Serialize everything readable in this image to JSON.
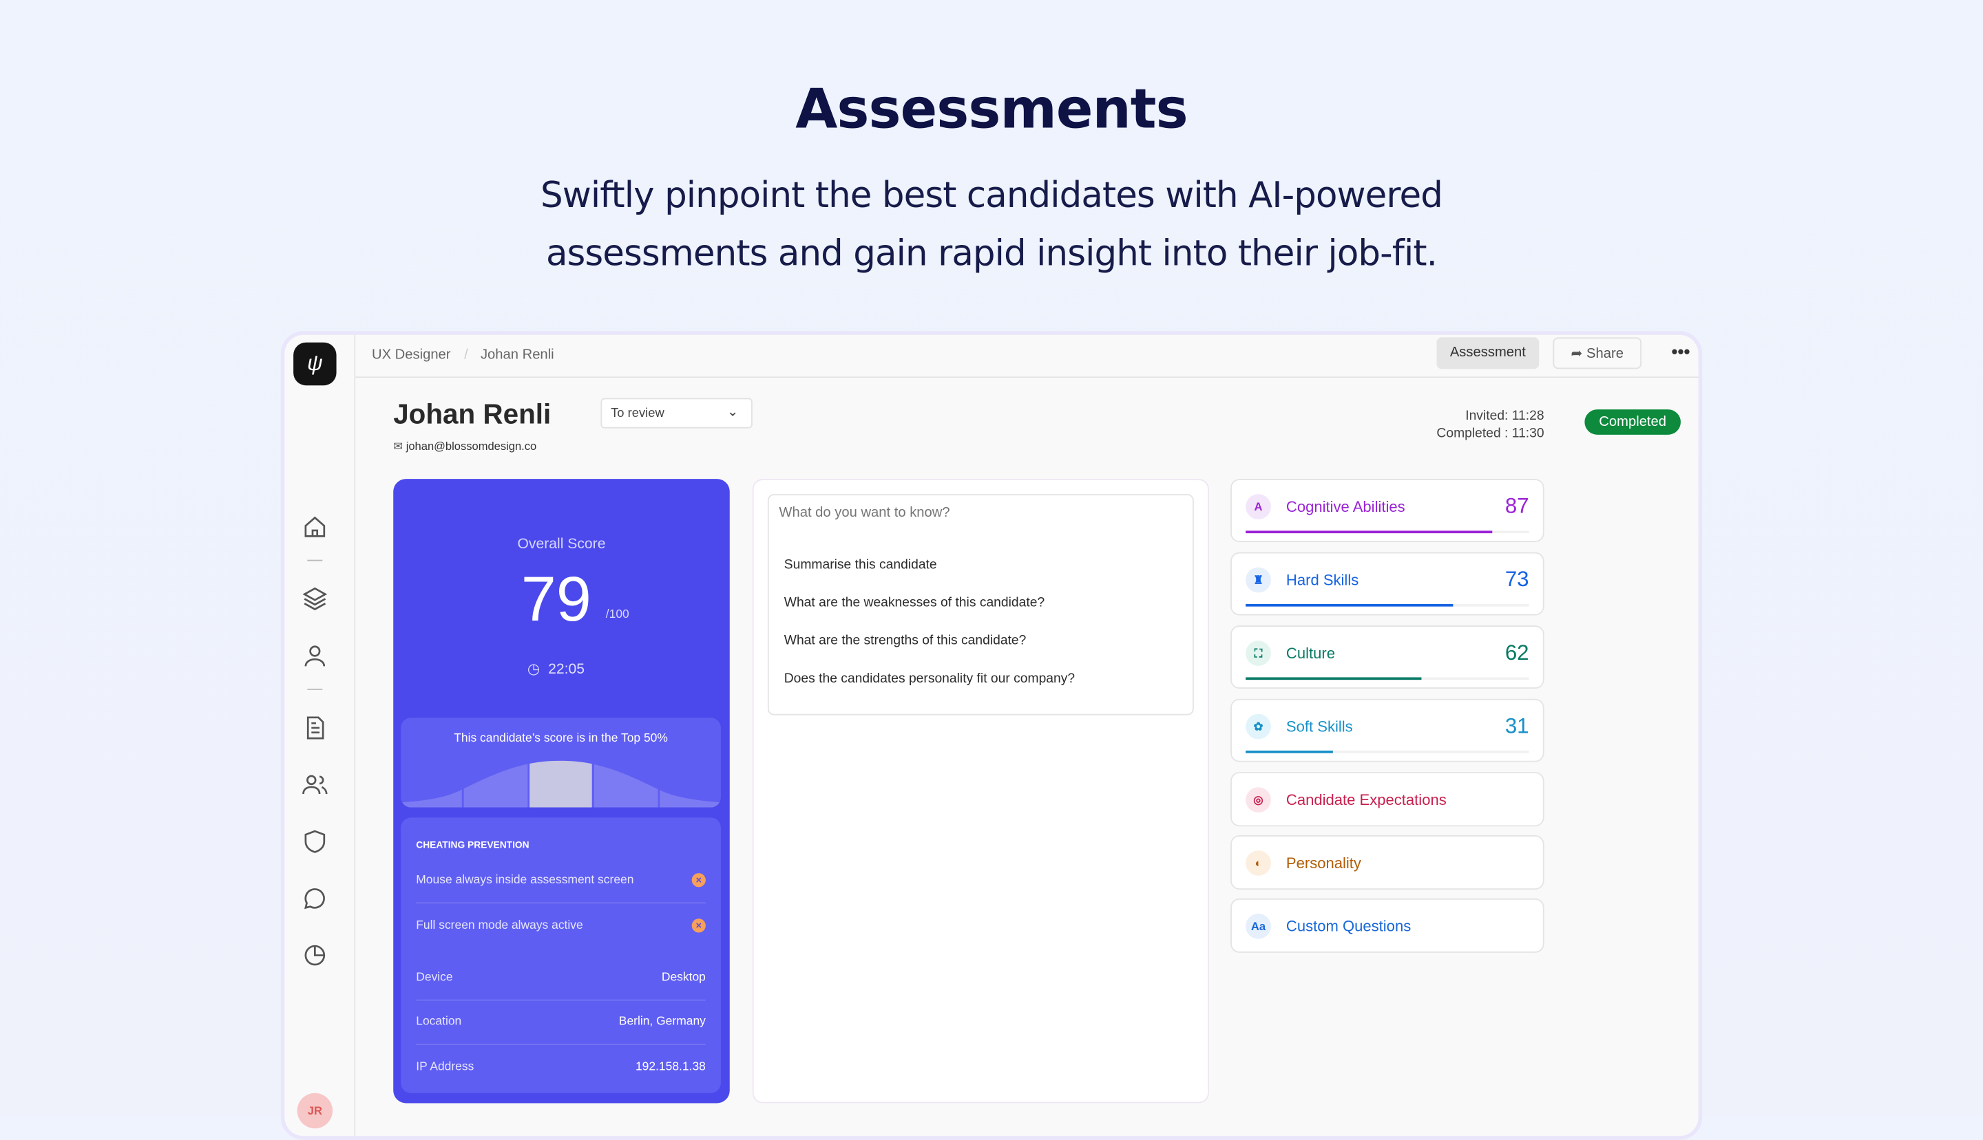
{
  "hero": {
    "title": "Assessments",
    "subtitle_line1": "Swiftly pinpoint the best candidates with AI-powered",
    "subtitle_line2": "assessments and gain rapid insight into their job-fit."
  },
  "breadcrumb": [
    "UX Designer",
    "Johan Renli"
  ],
  "topbar": {
    "assessment_label": "Assessment",
    "share_label": "Share",
    "more_icon": "more-horizontal-icon"
  },
  "candidate": {
    "name": "Johan Renli",
    "status": "To review",
    "email": "johan@blossomdesign.co",
    "invited": "Invited: 11:28",
    "completed": "Completed : 11:30",
    "badge": "Completed"
  },
  "score": {
    "label": "Overall Score",
    "value": "79",
    "max": "/100",
    "time": "22:05",
    "percentile_text": "This candidate’s score is in the Top 50%"
  },
  "cheating": {
    "title": "CHEATING PREVENTION",
    "checks": [
      "Mouse always inside assessment screen",
      "Full screen mode always active"
    ],
    "info": [
      {
        "label": "Device",
        "value": "Desktop"
      },
      {
        "label": "Location",
        "value": "Berlin, Germany"
      },
      {
        "label": "IP Address",
        "value": "192.158.1.38"
      }
    ]
  },
  "chat": {
    "placeholder": "What do you want to know?",
    "suggestions": [
      "Summarise this candidate",
      "What are the weaknesses of this candidate?",
      "What are the strengths of this candidate?",
      "Does the candidates personality fit our company?"
    ]
  },
  "categories": [
    {
      "label": "Cognitive Abilities",
      "score": "87",
      "percent": 87,
      "color": "#9a22d6",
      "bg": "#f3e6fb",
      "icon": "A"
    },
    {
      "label": "Hard Skills",
      "score": "73",
      "percent": 73,
      "color": "#1663e3",
      "bg": "#e6effc",
      "icon": "♜"
    },
    {
      "label": "Culture",
      "score": "62",
      "percent": 62,
      "color": "#087a64",
      "bg": "#e4f5ef",
      "icon": "⛶"
    },
    {
      "label": "Soft Skills",
      "score": "31",
      "percent": 31,
      "color": "#1790c8",
      "bg": "#e2f4fb",
      "icon": "✿"
    },
    {
      "label": "Candidate Expectations",
      "color": "#c81f4e",
      "bg": "#fbe5ea",
      "icon": "◎"
    },
    {
      "label": "Personality",
      "color": "#b15c05",
      "bg": "#fcefe0",
      "icon": "◐"
    },
    {
      "label": "Custom Questions",
      "color": "#1766d8",
      "bg": "#e6effc",
      "icon": "Aa"
    }
  ],
  "sidebar": {
    "avatar_initials": "JR"
  }
}
